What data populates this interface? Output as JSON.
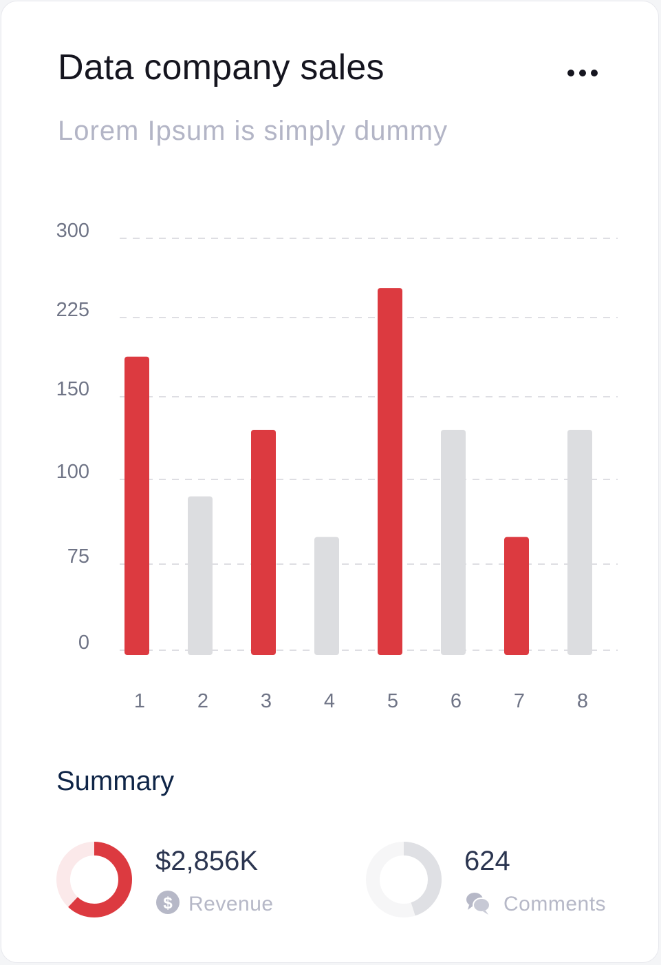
{
  "card": {
    "title": "Data company sales",
    "subtitle": "Lorem Ipsum is simply dummy",
    "menu_icon": "more-horizontal-icon"
  },
  "colors": {
    "accent": "#dc3a40",
    "muted_bar": "#dcdde0",
    "grid": "#c9cbd2",
    "tick": "#6f7486"
  },
  "chart_data": {
    "type": "bar",
    "title": "Data company sales",
    "subtitle": "Lorem Ipsum is simply dummy",
    "xlabel": "",
    "ylabel": "",
    "y_ticks": [
      0,
      75,
      100,
      150,
      225,
      300
    ],
    "grid": true,
    "categories": [
      "1",
      "2",
      "3",
      "4",
      "5",
      "6",
      "7",
      "8"
    ],
    "values": [
      188,
      95,
      130,
      83,
      253,
      130,
      83,
      130
    ],
    "highlighted": [
      true,
      false,
      true,
      false,
      true,
      false,
      true,
      false
    ]
  },
  "summary": {
    "title": "Summary",
    "revenue": {
      "value": "$2,856K",
      "label": "Revenue",
      "icon": "dollar-icon",
      "ring_fraction": 0.62,
      "color": "#dc3a40",
      "track": "#fbe9ea"
    },
    "comments": {
      "value": "624",
      "label": "Comments",
      "icon": "comments-icon",
      "ring_fraction": 0.45,
      "color": "#dfe0e4",
      "track": "#f6f6f7"
    }
  }
}
